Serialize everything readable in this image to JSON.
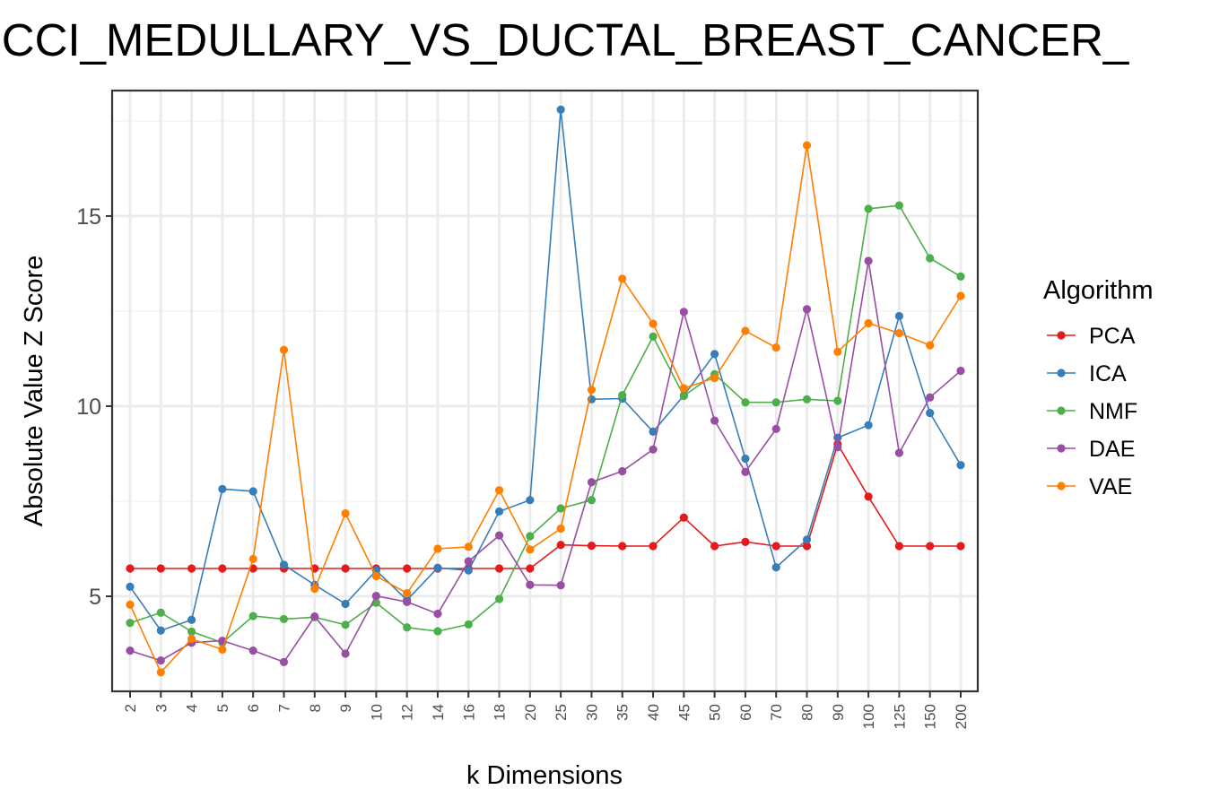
{
  "chart_data": {
    "type": "line",
    "title": "CCI_MEDULLARY_VS_DUCTAL_BREAST_CANCER_",
    "xlabel": "k Dimensions",
    "ylabel": "Absolute Value Z Score",
    "categories": [
      "2",
      "3",
      "4",
      "5",
      "6",
      "7",
      "8",
      "9",
      "10",
      "12",
      "14",
      "16",
      "18",
      "20",
      "25",
      "30",
      "35",
      "40",
      "45",
      "50",
      "60",
      "70",
      "80",
      "90",
      "100",
      "125",
      "150",
      "200"
    ],
    "ylim": [
      2.5,
      18.3
    ],
    "yticks": [
      5,
      10,
      15
    ],
    "grid": true,
    "legend": {
      "title": "Algorithm",
      "position": "right"
    },
    "series": [
      {
        "name": "PCA",
        "color": "#e41a1c",
        "values": [
          5.73,
          5.73,
          5.73,
          5.73,
          5.73,
          5.73,
          5.73,
          5.73,
          5.73,
          5.73,
          5.73,
          5.73,
          5.73,
          5.73,
          6.35,
          6.33,
          6.32,
          6.32,
          7.07,
          6.32,
          6.43,
          6.32,
          6.32,
          9.0,
          7.62,
          6.32,
          6.32,
          6.32
        ]
      },
      {
        "name": "ICA",
        "color": "#377eb8",
        "values": [
          5.25,
          4.1,
          4.38,
          7.82,
          7.76,
          5.83,
          5.3,
          4.8,
          5.68,
          4.9,
          5.75,
          5.68,
          7.23,
          7.53,
          17.8,
          10.18,
          10.2,
          9.33,
          10.28,
          11.37,
          8.62,
          5.76,
          6.49,
          9.17,
          9.5,
          12.37,
          9.82,
          8.45
        ]
      },
      {
        "name": "NMF",
        "color": "#4daf4a",
        "values": [
          4.3,
          4.57,
          4.07,
          3.78,
          4.48,
          4.4,
          4.45,
          4.25,
          4.83,
          4.18,
          4.08,
          4.26,
          4.93,
          6.58,
          7.31,
          7.53,
          10.29,
          11.83,
          10.27,
          10.84,
          10.1,
          10.1,
          10.18,
          10.14,
          15.19,
          15.28,
          13.89,
          13.41
        ]
      },
      {
        "name": "DAE",
        "color": "#984ea3",
        "values": [
          3.57,
          3.31,
          3.78,
          3.83,
          3.57,
          3.27,
          4.47,
          3.49,
          5.01,
          4.85,
          4.54,
          5.92,
          6.6,
          5.3,
          5.29,
          8.0,
          8.29,
          8.86,
          12.48,
          9.62,
          8.27,
          9.4,
          12.55,
          8.92,
          13.82,
          8.77,
          10.23,
          10.93
        ]
      },
      {
        "name": "VAE",
        "color": "#ff7f00",
        "values": [
          4.78,
          3.0,
          3.88,
          3.6,
          5.98,
          11.48,
          5.2,
          7.18,
          5.53,
          5.08,
          6.25,
          6.3,
          7.79,
          6.23,
          6.78,
          10.43,
          13.35,
          12.17,
          10.47,
          10.74,
          11.98,
          11.54,
          16.86,
          11.43,
          12.18,
          11.92,
          11.6,
          12.9
        ]
      }
    ]
  }
}
